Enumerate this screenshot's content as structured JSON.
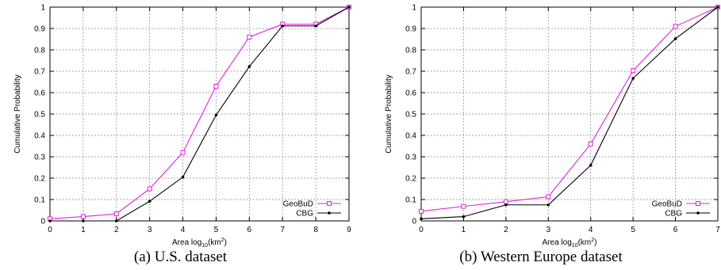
{
  "chart_data": [
    {
      "type": "line",
      "caption": "(a)  U.S. dataset",
      "xlabel_main": "Area log",
      "xlabel_sub": "10",
      "xlabel_tail": "(km",
      "xlabel_sup": "2",
      "xlabel_end": ")",
      "ylabel": "Cumulative Probability",
      "xlim": [
        0,
        9
      ],
      "ylim": [
        0,
        1
      ],
      "xticks": [
        "0",
        "1",
        "2",
        "3",
        "4",
        "5",
        "6",
        "7",
        "8",
        "9"
      ],
      "yticks": [
        "0",
        "0.1",
        "0.2",
        "0.3",
        "0.4",
        "0.5",
        "0.6",
        "0.7",
        "0.8",
        "0.9",
        "1"
      ],
      "grid": true,
      "legend_position": "bottom-right",
      "series": [
        {
          "name": "GeoBuD",
          "color": "#e020e0",
          "marker": "square",
          "x": [
            0,
            1,
            2,
            3,
            4,
            5,
            6,
            7,
            8,
            9
          ],
          "y": [
            0.01,
            0.02,
            0.033,
            0.15,
            0.32,
            0.63,
            0.86,
            0.92,
            0.92,
            1.0
          ]
        },
        {
          "name": "CBG",
          "color": "#000000",
          "marker": "dot",
          "x": [
            0,
            1,
            2,
            3,
            4,
            5,
            6,
            7,
            8,
            9
          ],
          "y": [
            0.0,
            0.0,
            0.0,
            0.092,
            0.205,
            0.495,
            0.722,
            0.912,
            0.912,
            1.0
          ]
        }
      ]
    },
    {
      "type": "line",
      "caption": "(b)  Western Europe dataset",
      "xlabel_main": "Area log",
      "xlabel_sub": "10",
      "xlabel_tail": "(km",
      "xlabel_sup": "2",
      "xlabel_end": ")",
      "ylabel": "Cumulative Probability",
      "xlim": [
        0,
        7
      ],
      "ylim": [
        0,
        1
      ],
      "xticks": [
        "0",
        "1",
        "2",
        "3",
        "4",
        "5",
        "6",
        "7"
      ],
      "yticks": [
        "0",
        "0.1",
        "0.2",
        "0.3",
        "0.4",
        "0.5",
        "0.6",
        "0.7",
        "0.8",
        "0.9",
        "1"
      ],
      "grid": true,
      "legend_position": "bottom-right",
      "series": [
        {
          "name": "GeoBuD",
          "color": "#e020e0",
          "marker": "square",
          "x": [
            0,
            1,
            2,
            3,
            4,
            5,
            6,
            7
          ],
          "y": [
            0.045,
            0.068,
            0.09,
            0.113,
            0.36,
            0.703,
            0.91,
            1.0
          ]
        },
        {
          "name": "CBG",
          "color": "#000000",
          "marker": "dot",
          "x": [
            0,
            1,
            2,
            3,
            4,
            5,
            6,
            7
          ],
          "y": [
            0.01,
            0.02,
            0.075,
            0.075,
            0.26,
            0.667,
            0.852,
            1.0
          ]
        }
      ]
    }
  ]
}
